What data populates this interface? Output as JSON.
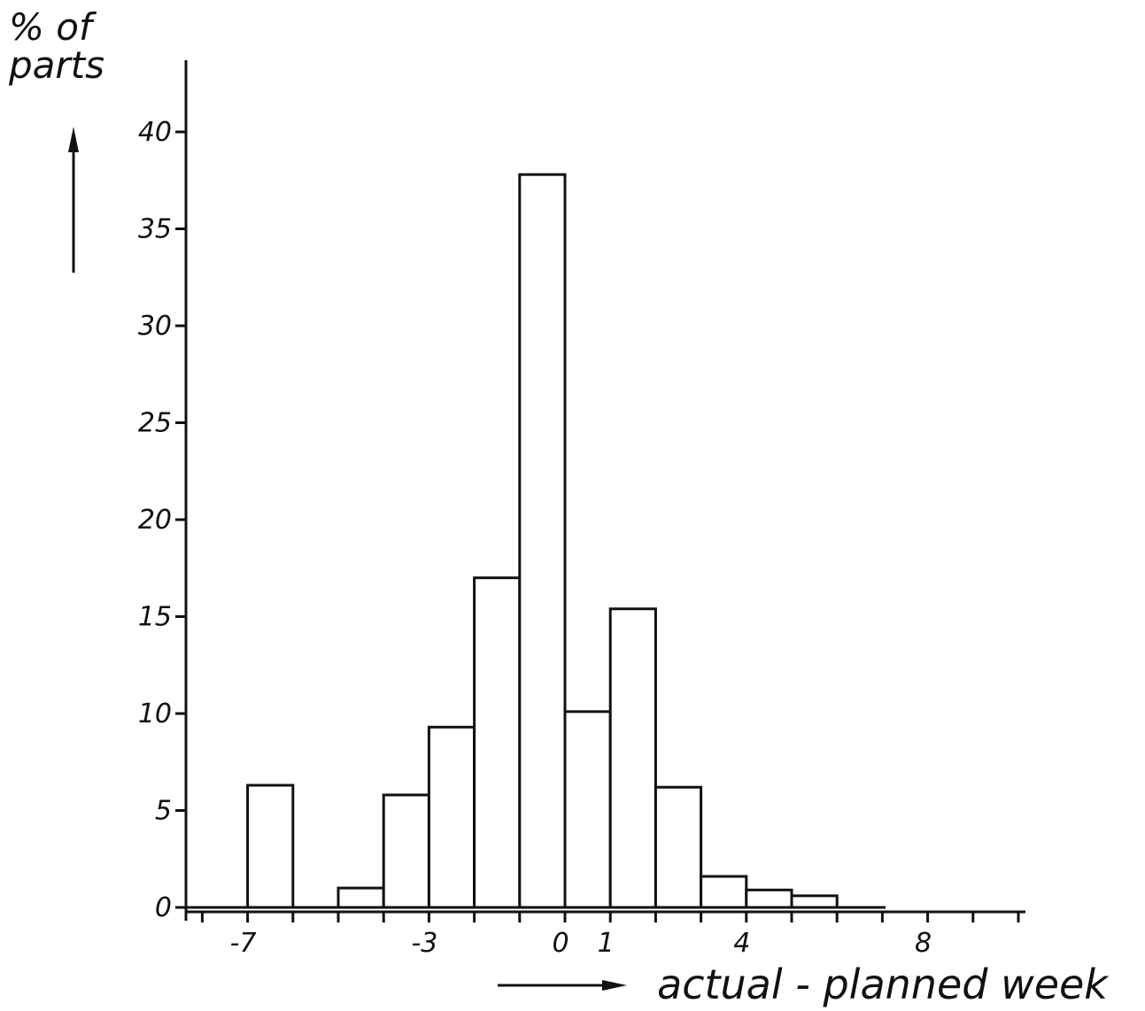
{
  "chart_data": {
    "type": "bar",
    "ylabel_line1": "% of",
    "ylabel_line2": "parts",
    "xlabel": "actual - planned week",
    "x_axis_range": [
      -8,
      10
    ],
    "y_axis_range": [
      0,
      40
    ],
    "y_ticks": [
      0,
      5,
      10,
      15,
      20,
      25,
      30,
      35,
      40
    ],
    "x_tick_labels": [
      {
        "value": -7,
        "label": "-7"
      },
      {
        "value": -3,
        "label": "-3"
      },
      {
        "value": 0,
        "label": "0"
      },
      {
        "value": 1,
        "label": "1"
      },
      {
        "value": 4,
        "label": "4"
      },
      {
        "value": 8,
        "label": "8"
      }
    ],
    "x_tick_marks": [
      -8,
      -7,
      -6,
      -5,
      -4,
      -3,
      -2,
      -1,
      0,
      1,
      2,
      3,
      4,
      5,
      6,
      7,
      8,
      9,
      10
    ],
    "bins": [
      {
        "x": -6,
        "value": 6.3
      },
      {
        "x": -4,
        "value": 1.0
      },
      {
        "x": -3,
        "value": 5.8
      },
      {
        "x": -2,
        "value": 9.3
      },
      {
        "x": -1,
        "value": 17.0
      },
      {
        "x": 0,
        "value": 37.8
      },
      {
        "x": 1,
        "value": 10.1
      },
      {
        "x": 2,
        "value": 15.4
      },
      {
        "x": 3,
        "value": 6.2
      },
      {
        "x": 4,
        "value": 1.6
      },
      {
        "x": 5,
        "value": 0.9
      },
      {
        "x": 6,
        "value": 0.6
      }
    ],
    "grid": false,
    "legend": "none"
  }
}
